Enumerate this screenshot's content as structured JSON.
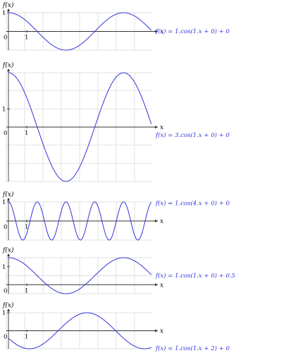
{
  "chart_data": [
    {
      "type": "line",
      "function": {
        "A": 1,
        "B": 1,
        "C": 0,
        "D": 0
      },
      "equation_label": "f(x) = 1.cos(1.x + 0) + 0",
      "ylabel": "f(x)",
      "xlabel": "x",
      "origin_label": "0",
      "x_tick_label": "1",
      "y_tick_label": "1",
      "xlim": [
        0,
        7.8
      ],
      "ylim": [
        -1,
        1
      ],
      "grid": true,
      "line_color": "#3333dd"
    },
    {
      "type": "line",
      "function": {
        "A": 3,
        "B": 1,
        "C": 0,
        "D": 0
      },
      "equation_label": "f(x) = 3.cos(1.x + 0) + 0",
      "ylabel": "f(x)",
      "xlabel": "x",
      "origin_label": "0",
      "x_tick_label": "1",
      "y_tick_label": "1",
      "xlim": [
        0,
        7.8
      ],
      "ylim": [
        -3,
        3
      ],
      "grid": true,
      "line_color": "#3333dd"
    },
    {
      "type": "line",
      "function": {
        "A": 1,
        "B": 4,
        "C": 0,
        "D": 0
      },
      "equation_label": "f(x) = 1.cos(4.x + 0) + 0",
      "ylabel": "f(x)",
      "xlabel": "x",
      "origin_label": "0",
      "x_tick_label": "1",
      "y_tick_label": "1",
      "xlim": [
        0,
        7.8
      ],
      "ylim": [
        -1,
        1
      ],
      "grid": true,
      "line_color": "#3333dd"
    },
    {
      "type": "line",
      "function": {
        "A": 1,
        "B": 1,
        "C": 0,
        "D": 0.5
      },
      "equation_label": "f(x) = 1.cos(1.x + 0) + 0.5",
      "ylabel": "f(x)",
      "xlabel": "x",
      "origin_label": "0",
      "x_tick_label": "1",
      "y_tick_label": "1",
      "xlim": [
        0,
        7.8
      ],
      "ylim": [
        -0.5,
        1.5
      ],
      "grid": true,
      "line_color": "#3333dd"
    },
    {
      "type": "line",
      "function": {
        "A": 1,
        "B": 1,
        "C": 2,
        "D": 0
      },
      "equation_label": "f(x) = 1.cos(1.x + 2) + 0",
      "ylabel": "f(x)",
      "xlabel": "x",
      "origin_label": "0",
      "x_tick_label": "1",
      "y_tick_label": "1",
      "xlim": [
        0,
        7.8
      ],
      "ylim": [
        -1,
        1
      ],
      "grid": true,
      "line_color": "#3333dd"
    }
  ]
}
